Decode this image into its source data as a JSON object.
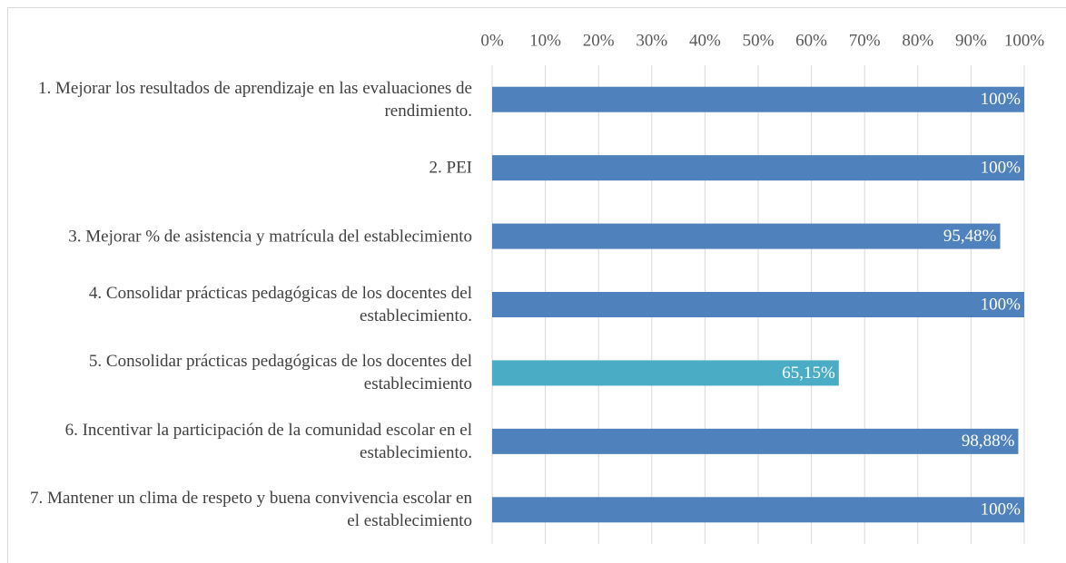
{
  "chart_data": {
    "type": "barh",
    "categories": [
      "1. Mejorar los resultados de aprendizaje en las evaluaciones de rendimiento.",
      "2. PEI",
      "3. Mejorar % de asistencia y matrícula del establecimiento",
      "4. Consolidar prácticas pedagógicas de los docentes del establecimiento.",
      "5. Consolidar prácticas pedagógicas de los docentes del establecimiento",
      "6. Incentivar la participación de la comunidad escolar en el establecimiento.",
      "7. Mantener un clima de respeto y buena convivencia escolar en el establecimiento"
    ],
    "values": [
      100,
      100,
      95.48,
      100,
      65.15,
      98.88,
      100
    ],
    "value_labels": [
      "100%",
      "100%",
      "95,48%",
      "100%",
      "65,15%",
      "98,88%",
      "100%"
    ],
    "colors": [
      "#4f81bd",
      "#4f81bd",
      "#4f81bd",
      "#4f81bd",
      "#4bacc6",
      "#4f81bd",
      "#4f81bd"
    ],
    "xlim": [
      0,
      100
    ],
    "xticks": [
      {
        "value": 0,
        "label": "0%"
      },
      {
        "value": 10,
        "label": "10%"
      },
      {
        "value": 20,
        "label": "20%"
      },
      {
        "value": 30,
        "label": "30%"
      },
      {
        "value": 40,
        "label": "40%"
      },
      {
        "value": 50,
        "label": "50%"
      },
      {
        "value": 60,
        "label": "60%"
      },
      {
        "value": 70,
        "label": "70%"
      },
      {
        "value": 80,
        "label": "80%"
      },
      {
        "value": 90,
        "label": "90%"
      },
      {
        "value": 100,
        "label": "100%"
      }
    ],
    "grid": true
  }
}
